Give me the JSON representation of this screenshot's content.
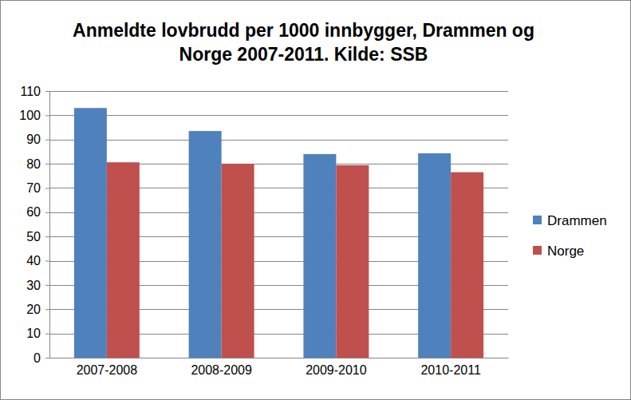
{
  "chart_data": {
    "type": "bar",
    "title": "Anmeldte lovbrudd per 1000 innbygger, Drammen og Norge 2007-2011. Kilde: SSB",
    "categories": [
      "2007-2008",
      "2008-2009",
      "2009-2010",
      "2010-2011"
    ],
    "series": [
      {
        "name": "Drammen",
        "color": "#4f81bd",
        "values": [
          103,
          93.5,
          84,
          84.3
        ]
      },
      {
        "name": "Norge",
        "color": "#c0504d",
        "values": [
          80.6,
          80,
          79.4,
          76.5
        ]
      }
    ],
    "ylim": [
      0,
      110
    ],
    "yticks": [
      0,
      10,
      20,
      30,
      40,
      50,
      60,
      70,
      80,
      90,
      100,
      110
    ],
    "grid": true,
    "legend": "right"
  }
}
